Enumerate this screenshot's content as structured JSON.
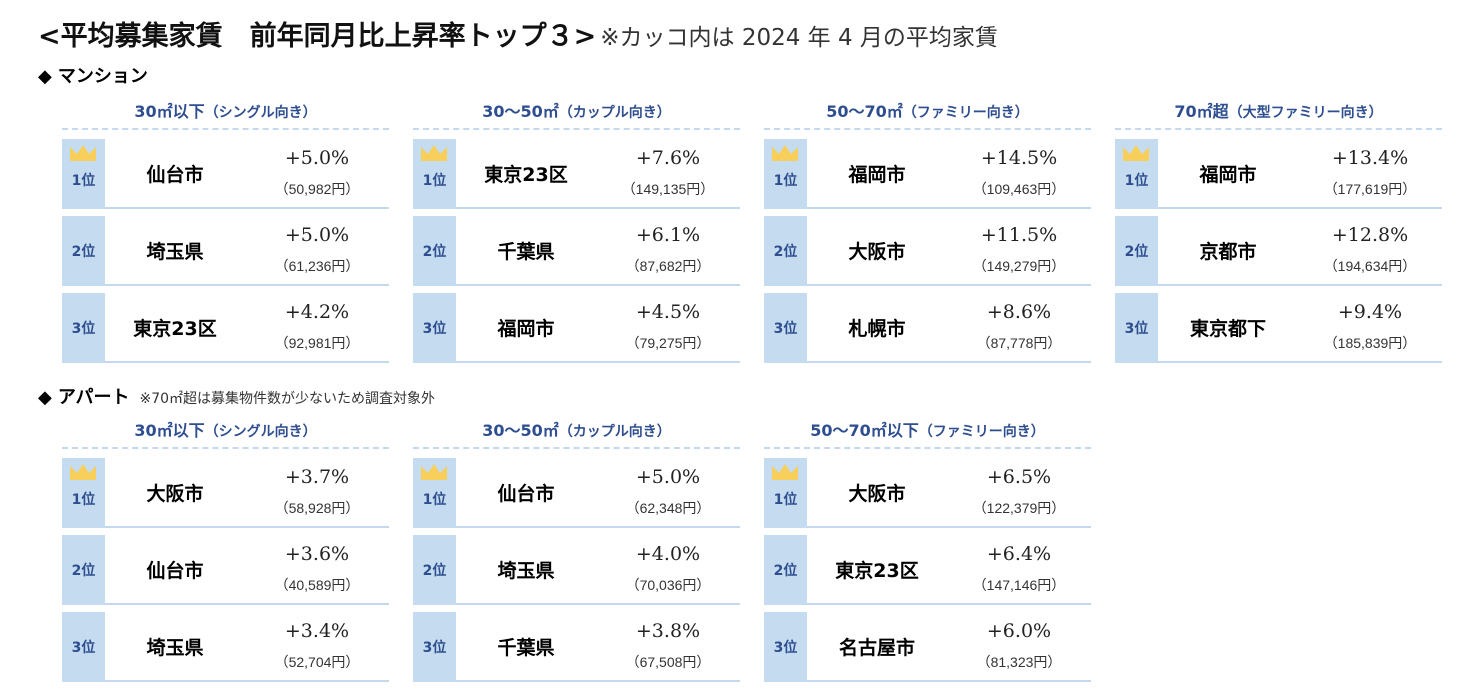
{
  "title": {
    "main": "<平均募集家賃　前年同月比上昇率トップ３>",
    "note": "※カッコ内は 2024 年 4 月の平均家賃"
  },
  "colors": {
    "header_blue": "#2e4e8f",
    "rank_bg": "#c5dbf0",
    "divider": "#c5d9ee",
    "crown": "#f7cf5a"
  },
  "mansion": {
    "label": "マンション",
    "diamond": "◆",
    "columns": [
      {
        "size": "30㎡以下",
        "kind": "（シングル向き）",
        "rows": [
          {
            "rank": "1位",
            "city": "仙台市",
            "pct": "+5.0%",
            "rent": "（50,982円）"
          },
          {
            "rank": "2位",
            "city": "埼玉県",
            "pct": "+5.0%",
            "rent": "（61,236円）"
          },
          {
            "rank": "3位",
            "city": "東京23区",
            "pct": "+4.2%",
            "rent": "（92,981円）"
          }
        ]
      },
      {
        "size": "30〜50㎡",
        "kind": "（カップル向き）",
        "rows": [
          {
            "rank": "1位",
            "city": "東京23区",
            "pct": "+7.6%",
            "rent": "（149,135円）"
          },
          {
            "rank": "2位",
            "city": "千葉県",
            "pct": "+6.1%",
            "rent": "（87,682円）"
          },
          {
            "rank": "3位",
            "city": "福岡市",
            "pct": "+4.5%",
            "rent": "（79,275円）"
          }
        ]
      },
      {
        "size": "50〜70㎡",
        "kind": "（ファミリー向き）",
        "rows": [
          {
            "rank": "1位",
            "city": "福岡市",
            "pct": "+14.5%",
            "rent": "（109,463円）"
          },
          {
            "rank": "2位",
            "city": "大阪市",
            "pct": "+11.5%",
            "rent": "（149,279円）"
          },
          {
            "rank": "3位",
            "city": "札幌市",
            "pct": "+8.6%",
            "rent": "（87,778円）"
          }
        ]
      },
      {
        "size": "70㎡超",
        "kind": "（大型ファミリー向き）",
        "rows": [
          {
            "rank": "1位",
            "city": "福岡市",
            "pct": "+13.4%",
            "rent": "（177,619円）"
          },
          {
            "rank": "2位",
            "city": "京都市",
            "pct": "+12.8%",
            "rent": "（194,634円）"
          },
          {
            "rank": "3位",
            "city": "東京都下",
            "pct": "+9.4%",
            "rent": "（185,839円）"
          }
        ]
      }
    ]
  },
  "apartment": {
    "label": "アパート",
    "diamond": "◆",
    "note": "※70㎡超は募集物件数が少ないため調査対象外",
    "columns": [
      {
        "size": "30㎡以下",
        "kind": "（シングル向き）",
        "rows": [
          {
            "rank": "1位",
            "city": "大阪市",
            "pct": "+3.7%",
            "rent": "（58,928円）"
          },
          {
            "rank": "2位",
            "city": "仙台市",
            "pct": "+3.6%",
            "rent": "（40,589円）"
          },
          {
            "rank": "3位",
            "city": "埼玉県",
            "pct": "+3.4%",
            "rent": "（52,704円）"
          }
        ]
      },
      {
        "size": "30〜50㎡",
        "kind": "（カップル向き）",
        "rows": [
          {
            "rank": "1位",
            "city": "仙台市",
            "pct": "+5.0%",
            "rent": "（62,348円）"
          },
          {
            "rank": "2位",
            "city": "埼玉県",
            "pct": "+4.0%",
            "rent": "（70,036円）"
          },
          {
            "rank": "3位",
            "city": "千葉県",
            "pct": "+3.8%",
            "rent": "（67,508円）"
          }
        ]
      },
      {
        "size": "50〜70㎡以下",
        "kind": "（ファミリー向き）",
        "rows": [
          {
            "rank": "1位",
            "city": "大阪市",
            "pct": "+6.5%",
            "rent": "（122,379円）"
          },
          {
            "rank": "2位",
            "city": "東京23区",
            "pct": "+6.4%",
            "rent": "（147,146円）"
          },
          {
            "rank": "3位",
            "city": "名古屋市",
            "pct": "+6.0%",
            "rent": "（81,323円）"
          }
        ]
      }
    ]
  }
}
